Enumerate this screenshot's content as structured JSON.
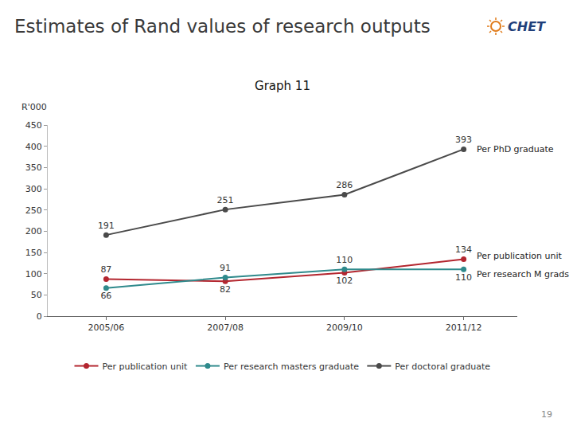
{
  "slide_title": "Estimates of Rand values of research outputs",
  "logo": "CHET",
  "page_number": "19",
  "chart_data": {
    "type": "line",
    "title": "Graph 11",
    "y_label": "R'000",
    "categories": [
      "2005/06",
      "2007/08",
      "2009/10",
      "2011/12"
    ],
    "series": [
      {
        "name": "Per publication unit",
        "end_label": "Per publication unit",
        "color": "#b3262f",
        "values": [
          87,
          82,
          102,
          134
        ]
      },
      {
        "name": "Per research masters graduate",
        "end_label": "Per research M grads",
        "color": "#2f8a8c",
        "values": [
          66,
          91,
          110,
          110
        ]
      },
      {
        "name": "Per doctoral graduate",
        "end_label": "Per PhD graduate",
        "color": "#4a4a4a",
        "values": [
          191,
          251,
          286,
          393
        ]
      }
    ],
    "ylim": [
      0,
      450
    ],
    "yticks": [
      0,
      50,
      100,
      150,
      200,
      250,
      300,
      350,
      400,
      450
    ],
    "grid": false,
    "legend": "bottom",
    "data_labels": true,
    "marker": "circle"
  }
}
